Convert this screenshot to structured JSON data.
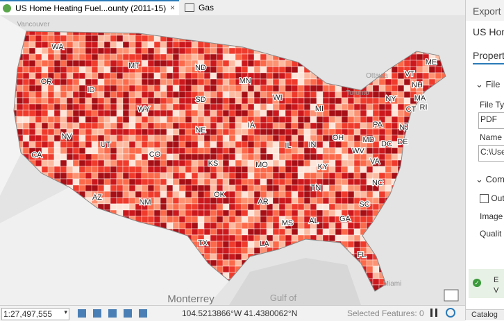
{
  "tabs": [
    {
      "label": "US Home Heating Fuel...ounty (2011-15)"
    },
    {
      "label": "Gas"
    }
  ],
  "map": {
    "state_labels": [
      "WA",
      "OR",
      "ID",
      "MT",
      "ND",
      "MN",
      "WI",
      "MI",
      "SD",
      "WY",
      "NE",
      "IA",
      "IL",
      "IN",
      "OH",
      "PA",
      "NY",
      "VT",
      "NH",
      "ME",
      "MA",
      "CT",
      "RI",
      "NJ",
      "DE",
      "MD",
      "DC",
      "WV",
      "VA",
      "NV",
      "UT",
      "CO",
      "KS",
      "MO",
      "KY",
      "CA",
      "AZ",
      "NM",
      "OK",
      "AR",
      "TN",
      "NC",
      "SC",
      "MS",
      "AL",
      "GA",
      "LA",
      "TX",
      "FL"
    ],
    "place_labels": [
      "Vancouver",
      "Ottawa",
      "Toronto",
      "Monterrey",
      "Gulf of",
      "Miami"
    ]
  },
  "status_bar": {
    "scale": "1:27,497,555",
    "coordinates": "104.5213866°W 41.4380062°N",
    "selected_features": "Selected Features: 0"
  },
  "export_pane": {
    "title": "Export",
    "subtitle": "US Hom",
    "tab": "Propert",
    "section_file": "File",
    "file_type_label": "File Typ",
    "file_type_value": "PDF",
    "name_label": "Name",
    "name_value": "C:\\Use",
    "section_compression": "Com",
    "output_checkbox": "Out",
    "image_label": "Image",
    "quality_label": "Qualit",
    "status_line1": "E",
    "status_line2": "V",
    "bottom_tab": "Catalog"
  }
}
